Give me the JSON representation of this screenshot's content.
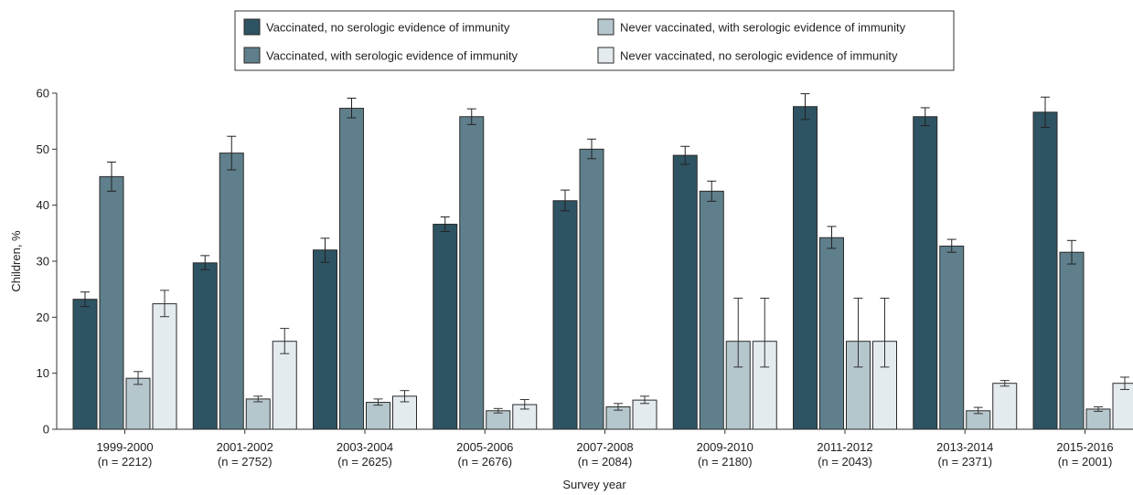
{
  "chart_data": {
    "type": "bar",
    "title": "",
    "xlabel": "Survey year",
    "ylabel": "Children, %",
    "ylim": [
      0,
      60
    ],
    "yticks": [
      0,
      10,
      20,
      30,
      40,
      50,
      60
    ],
    "grid": false,
    "legend_position": "top-center",
    "categories": [
      "1999-2000",
      "2001-2002",
      "2003-2004",
      "2005-2006",
      "2007-2008",
      "2009-2010",
      "2011-2012",
      "2013-2014",
      "2015-2016"
    ],
    "category_sublabels": [
      "(n = 2212)",
      "(n = 2752)",
      "(n = 2625)",
      "(n = 2676)",
      "(n = 2084)",
      "(n = 2180)",
      "(n = 2043)",
      "(n = 2371)",
      "(n = 2001)"
    ],
    "series": [
      {
        "name": "Vaccinated, no serologic evidence of immunity",
        "color": "#2e5362",
        "values": [
          23.2,
          29.7,
          32.0,
          36.6,
          40.8,
          48.9,
          57.6,
          55.8,
          56.6
        ],
        "error_low": [
          21.9,
          28.5,
          29.8,
          35.3,
          39.0,
          47.3,
          55.3,
          54.2,
          53.9
        ],
        "error_high": [
          24.5,
          31.0,
          34.1,
          37.9,
          42.7,
          50.5,
          59.9,
          57.4,
          59.3
        ]
      },
      {
        "name": "Vaccinated, with serologic evidence of immunity",
        "color": "#5f7f8c",
        "values": [
          45.1,
          49.3,
          57.3,
          55.8,
          50.0,
          42.5,
          34.2,
          32.7,
          31.6
        ],
        "error_low": [
          42.5,
          46.3,
          55.6,
          54.4,
          48.3,
          40.7,
          32.3,
          31.6,
          29.5
        ],
        "error_high": [
          47.7,
          52.3,
          59.1,
          57.2,
          51.8,
          44.3,
          36.2,
          33.9,
          33.7
        ]
      },
      {
        "name": "Never vaccinated, with serologic evidence of immunity",
        "color": "#b5c7cd",
        "values": [
          9.1,
          5.4,
          4.8,
          3.3,
          4.0,
          15.7,
          15.7,
          3.3,
          3.6
        ],
        "error_low": [
          8.0,
          4.9,
          4.3,
          2.9,
          3.4,
          11.1,
          11.1,
          2.8,
          3.2
        ],
        "error_high": [
          10.3,
          5.9,
          5.4,
          3.7,
          4.6,
          23.4,
          23.4,
          3.9,
          4.0
        ]
      },
      {
        "name": "Never vaccinated, no serologic evidence of immunity",
        "color": "#e4ebee",
        "values": [
          22.4,
          15.7,
          5.9,
          4.4,
          5.2,
          15.7,
          15.7,
          8.2,
          8.2
        ],
        "error_low": [
          20.1,
          13.5,
          4.9,
          3.6,
          4.6,
          11.1,
          11.1,
          7.7,
          7.1
        ],
        "error_high": [
          24.8,
          18.0,
          6.9,
          5.3,
          5.9,
          23.4,
          23.4,
          8.7,
          9.3
        ]
      }
    ]
  }
}
